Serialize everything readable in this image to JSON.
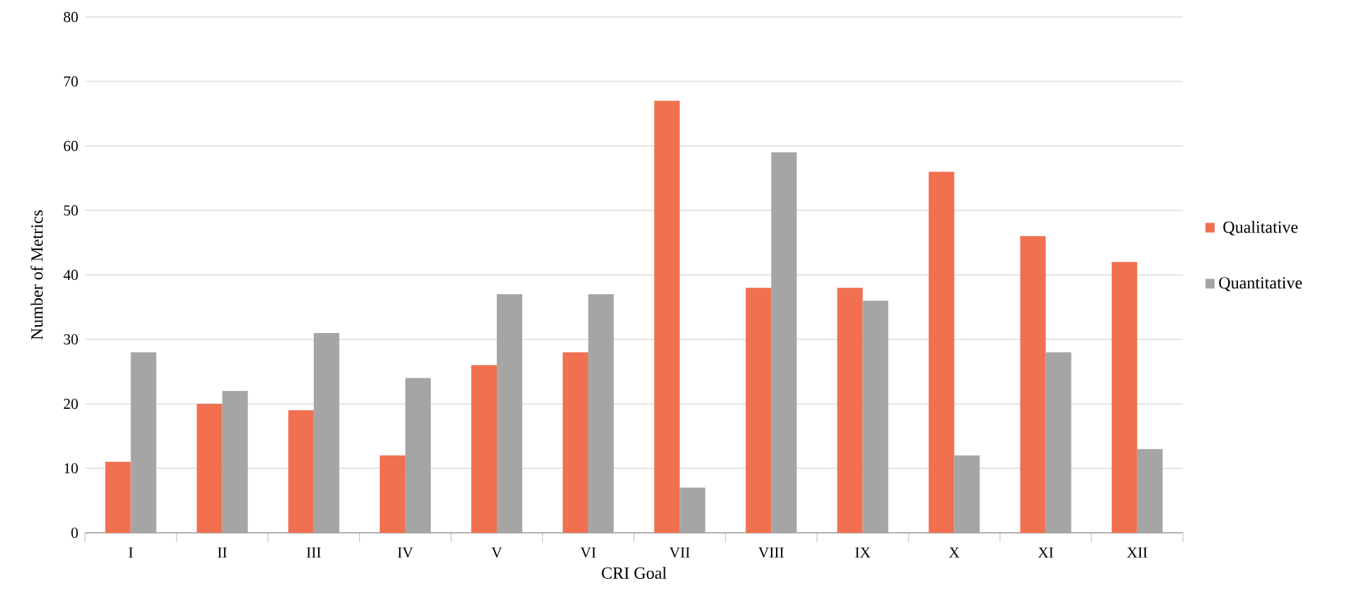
{
  "chart_data": {
    "type": "bar",
    "xlabel": "CRI Goal",
    "ylabel": "Number of Metrics",
    "categories": [
      "I",
      "II",
      "III",
      "IV",
      "V",
      "VI",
      "VII",
      "VIII",
      "IX",
      "X",
      "XI",
      "XII"
    ],
    "series": [
      {
        "name": "Qualitative",
        "color": "#f0704f",
        "values": [
          11,
          20,
          19,
          12,
          26,
          28,
          67,
          38,
          38,
          56,
          46,
          42
        ]
      },
      {
        "name": "Quantitative",
        "color": "#a5a5a5",
        "values": [
          28,
          22,
          31,
          24,
          37,
          37,
          7,
          59,
          36,
          12,
          28,
          13
        ]
      }
    ],
    "ylim": [
      0,
      80
    ],
    "yticks": [
      0,
      10,
      20,
      30,
      40,
      50,
      60,
      70,
      80
    ],
    "grid": "y",
    "legend": "right"
  }
}
